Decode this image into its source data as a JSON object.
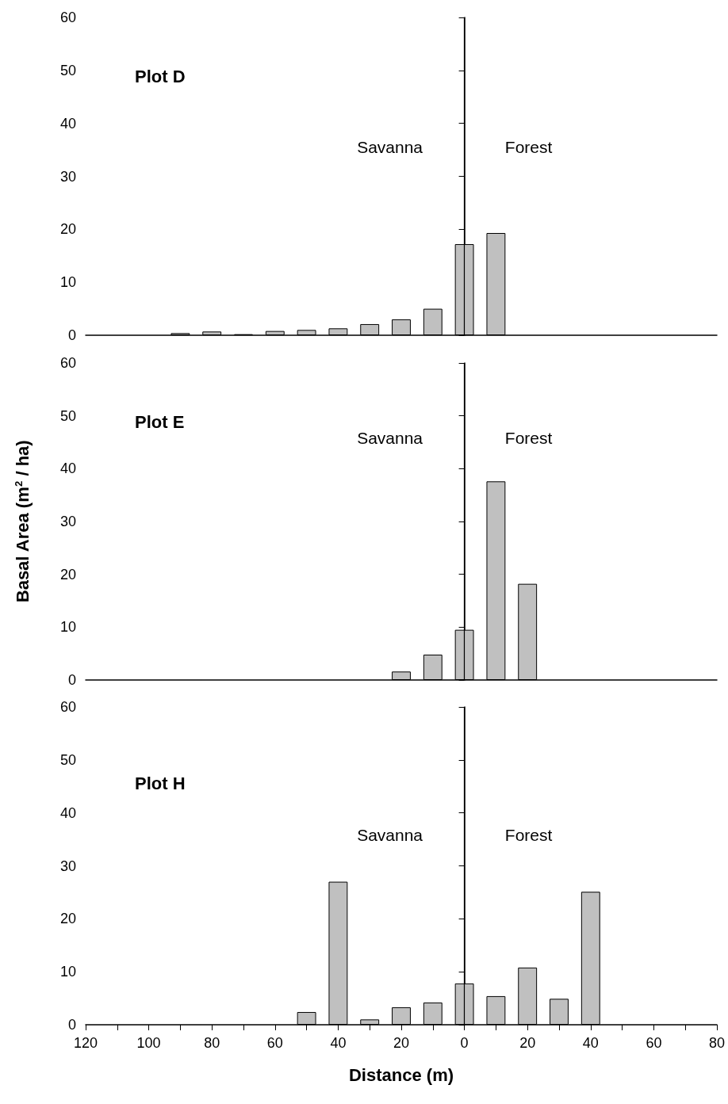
{
  "chart_data": [
    {
      "type": "bar",
      "title": "Plot D",
      "x": [
        -90,
        -80,
        -70,
        -60,
        -50,
        -40,
        -30,
        -20,
        -10,
        0,
        10
      ],
      "values": [
        0.4,
        0.7,
        0.2,
        0.8,
        1.0,
        1.3,
        2.1,
        3.0,
        5.0,
        17.2,
        19.3
      ],
      "color": "#c0c0c0",
      "xlim": [
        -120,
        80
      ],
      "ylim": [
        0,
        60
      ],
      "yticks": [
        0,
        10,
        20,
        30,
        40,
        50,
        60
      ],
      "tick_labels": "y",
      "grid": false,
      "ref_lines": [
        {
          "axis": "x",
          "value": 0
        }
      ],
      "annotations": [
        "Savanna",
        "Forest"
      ]
    },
    {
      "type": "bar",
      "title": "Plot E",
      "ylabel": "Basal Area (m$^{2}$ / ha)",
      "x": [
        -20,
        -10,
        0,
        10,
        20
      ],
      "values": [
        1.6,
        4.8,
        9.5,
        37.6,
        18.2
      ],
      "color": "#c0c0c0",
      "xlim": [
        -120,
        80
      ],
      "ylim": [
        0,
        60
      ],
      "yticks": [
        0,
        10,
        20,
        30,
        40,
        50,
        60
      ],
      "tick_labels": "y",
      "grid": false,
      "ref_lines": [
        {
          "axis": "x",
          "value": 0
        }
      ],
      "annotations": [
        "Savanna",
        "Forest"
      ]
    },
    {
      "type": "bar",
      "title": "Plot H",
      "xlabel": "Distance (m)",
      "x": [
        -50,
        -40,
        -30,
        -20,
        -10,
        0,
        10,
        20,
        30,
        40
      ],
      "values": [
        2.4,
        27.0,
        1.0,
        3.3,
        4.2,
        7.8,
        5.4,
        10.8,
        4.9,
        25.1
      ],
      "color": "#c0c0c0",
      "xlim": [
        -120,
        80
      ],
      "ylim": [
        0,
        60
      ],
      "yticks": [
        0,
        10,
        20,
        30,
        40,
        50,
        60
      ],
      "grid": false,
      "ref_lines": [
        {
          "axis": "x",
          "value": 0
        }
      ],
      "xticks": [
        {
          "value": -120,
          "label": "120"
        },
        {
          "value": -110,
          "label": null
        },
        {
          "value": -100,
          "label": "100"
        },
        {
          "value": -90,
          "label": null
        },
        {
          "value": -80,
          "label": "80"
        },
        {
          "value": -70,
          "label": null
        },
        {
          "value": -60,
          "label": "60"
        },
        {
          "value": -50,
          "label": null
        },
        {
          "value": -40,
          "label": "40"
        },
        {
          "value": -30,
          "label": null
        },
        {
          "value": -20,
          "label": "20"
        },
        {
          "value": -10,
          "label": null
        },
        {
          "value": 0,
          "label": "0"
        },
        {
          "value": 10,
          "label": null
        },
        {
          "value": 20,
          "label": "20"
        },
        {
          "value": 30,
          "label": null
        },
        {
          "value": 40,
          "label": "40"
        },
        {
          "value": 50,
          "label": null
        },
        {
          "value": 60,
          "label": "60"
        },
        {
          "value": 70,
          "label": null
        },
        {
          "value": 80,
          "label": "80"
        }
      ],
      "annotations": [
        "Savanna",
        "Forest"
      ]
    }
  ]
}
